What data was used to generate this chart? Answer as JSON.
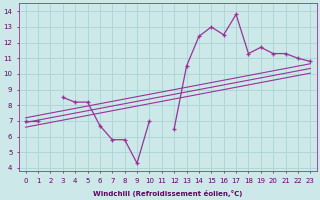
{
  "xlabel": "Windchill (Refroidissement éolien,°C)",
  "background_color": "#cce8e8",
  "grid_color": "#aad4d4",
  "line_color": "#993399",
  "x_data": [
    0,
    1,
    2,
    3,
    4,
    5,
    6,
    7,
    8,
    9,
    10,
    11,
    12,
    13,
    14,
    15,
    16,
    17,
    18,
    19,
    20,
    21,
    22,
    23
  ],
  "y_main": [
    7.0,
    7.0,
    null,
    8.5,
    8.2,
    8.2,
    6.7,
    5.8,
    5.8,
    4.3,
    7.0,
    null,
    6.5,
    10.5,
    12.4,
    13.0,
    12.5,
    13.8,
    11.3,
    11.7,
    11.3,
    11.3,
    11.0,
    10.8
  ],
  "y_upper": [
    7.2,
    7.35,
    7.5,
    7.65,
    7.8,
    7.95,
    8.1,
    8.25,
    8.4,
    8.55,
    8.7,
    8.85,
    9.0,
    9.15,
    9.3,
    9.45,
    9.6,
    9.75,
    9.9,
    10.05,
    10.2,
    10.35,
    10.5,
    10.65
  ],
  "y_mid": [
    6.9,
    7.05,
    7.2,
    7.35,
    7.5,
    7.65,
    7.8,
    7.95,
    8.1,
    8.25,
    8.4,
    8.55,
    8.7,
    8.85,
    9.0,
    9.15,
    9.3,
    9.45,
    9.6,
    9.75,
    9.9,
    10.05,
    10.2,
    10.35
  ],
  "y_lower": [
    6.6,
    6.75,
    6.9,
    7.05,
    7.2,
    7.35,
    7.5,
    7.65,
    7.8,
    7.95,
    8.1,
    8.25,
    8.4,
    8.55,
    8.7,
    8.85,
    9.0,
    9.15,
    9.3,
    9.45,
    9.6,
    9.75,
    9.9,
    10.05
  ],
  "ylim": [
    3.8,
    14.5
  ],
  "xlim": [
    -0.5,
    23.5
  ],
  "yticks": [
    4,
    5,
    6,
    7,
    8,
    9,
    10,
    11,
    12,
    13,
    14
  ],
  "xticks": [
    0,
    1,
    2,
    3,
    4,
    5,
    6,
    7,
    8,
    9,
    10,
    11,
    12,
    13,
    14,
    15,
    16,
    17,
    18,
    19,
    20,
    21,
    22,
    23
  ],
  "xtick_labels": [
    "0",
    "1",
    "2",
    "3",
    "4",
    "5",
    "6",
    "7",
    "8",
    "9",
    "10",
    "11",
    "12",
    "13",
    "14",
    "15",
    "16",
    "17",
    "18",
    "19",
    "20",
    "21",
    "22",
    "23"
  ]
}
